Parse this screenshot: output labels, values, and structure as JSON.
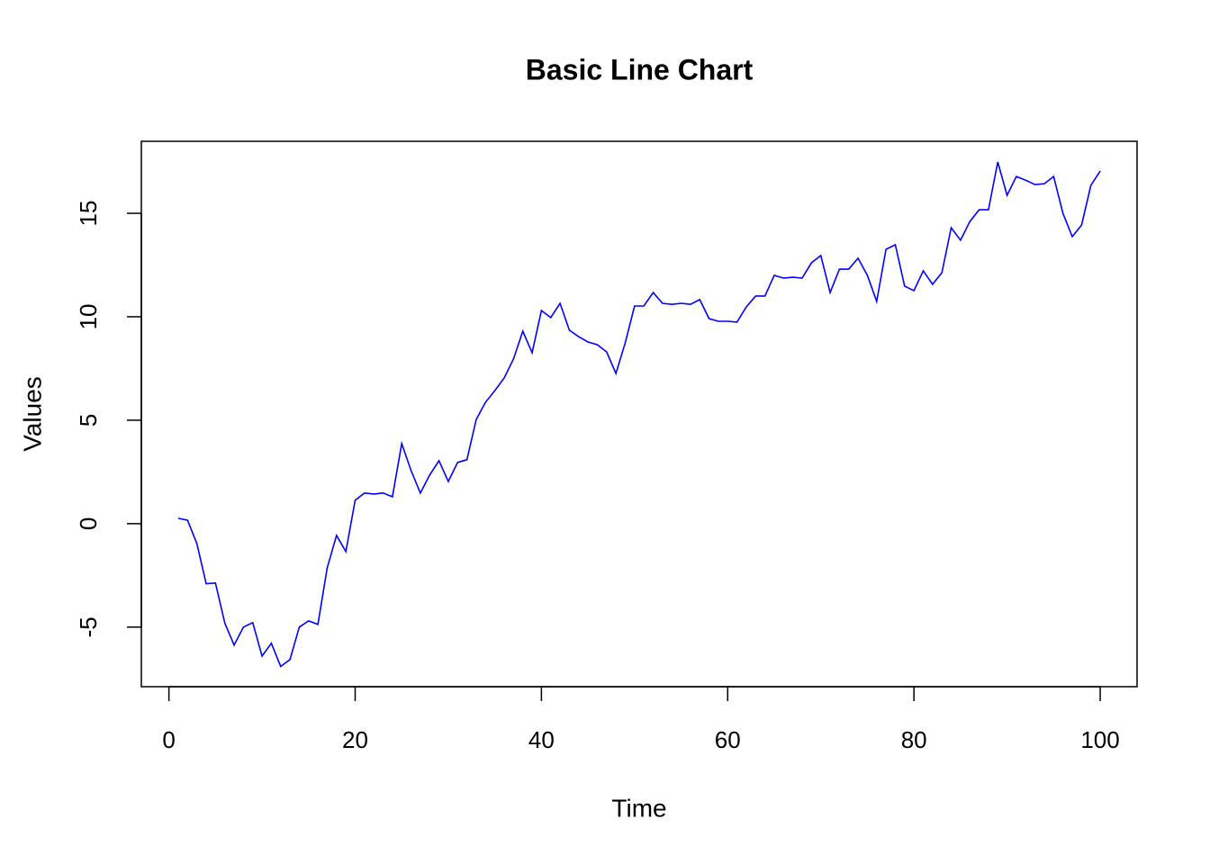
{
  "chart_data": {
    "type": "line",
    "title": "Basic Line Chart",
    "x_label": "Time",
    "y_label": "Values",
    "x": [
      1,
      2,
      3,
      4,
      5,
      6,
      7,
      8,
      9,
      10,
      11,
      12,
      13,
      14,
      15,
      16,
      17,
      18,
      19,
      20,
      21,
      22,
      23,
      24,
      25,
      26,
      27,
      28,
      29,
      30,
      31,
      32,
      33,
      34,
      35,
      36,
      37,
      38,
      39,
      40,
      41,
      42,
      43,
      44,
      45,
      46,
      47,
      48,
      49,
      50,
      51,
      52,
      53,
      54,
      55,
      56,
      57,
      58,
      59,
      60,
      61,
      62,
      63,
      64,
      65,
      66,
      67,
      68,
      69,
      70,
      71,
      72,
      73,
      74,
      75,
      76,
      77,
      78,
      79,
      80,
      81,
      82,
      83,
      84,
      85,
      86,
      87,
      88,
      89,
      90,
      91,
      92,
      93,
      94,
      95,
      96,
      97,
      98,
      99,
      100
    ],
    "series": [
      {
        "name": "Values",
        "color": "#0000ff",
        "values": [
          0.26,
          0.17,
          -0.96,
          -2.9,
          -2.87,
          -4.8,
          -5.87,
          -5.0,
          -4.78,
          -6.4,
          -5.78,
          -6.9,
          -6.57,
          -5.0,
          -4.7,
          -4.87,
          -2.13,
          -0.57,
          -1.35,
          1.13,
          1.48,
          1.43,
          1.48,
          1.3,
          3.87,
          2.57,
          1.48,
          2.35,
          3.04,
          2.04,
          2.96,
          3.09,
          5.04,
          5.87,
          6.43,
          7.04,
          7.96,
          9.3,
          8.26,
          10.3,
          9.96,
          10.65,
          9.35,
          9.04,
          8.78,
          8.65,
          8.3,
          7.26,
          8.74,
          10.52,
          10.52,
          11.17,
          10.65,
          10.6,
          10.65,
          10.6,
          10.83,
          9.91,
          9.78,
          9.78,
          9.74,
          10.48,
          11.0,
          11.0,
          12.0,
          11.87,
          11.91,
          11.87,
          12.61,
          12.96,
          11.17,
          12.3,
          12.3,
          12.83,
          12.0,
          10.74,
          13.26,
          13.48,
          11.48,
          11.26,
          12.22,
          11.57,
          12.13,
          14.3,
          13.7,
          14.6,
          15.17,
          15.17,
          17.48,
          15.87,
          16.78,
          16.6,
          16.39,
          16.43,
          16.78,
          15.0,
          13.87,
          14.43,
          16.35,
          17.04
        ]
      }
    ],
    "xlim": [
      -2.96,
      103.96
    ],
    "ylim": [
      -7.88,
      18.48
    ],
    "xticks": [
      0,
      20,
      40,
      60,
      80,
      100
    ],
    "yticks": [
      -5,
      0,
      5,
      10,
      15
    ]
  }
}
